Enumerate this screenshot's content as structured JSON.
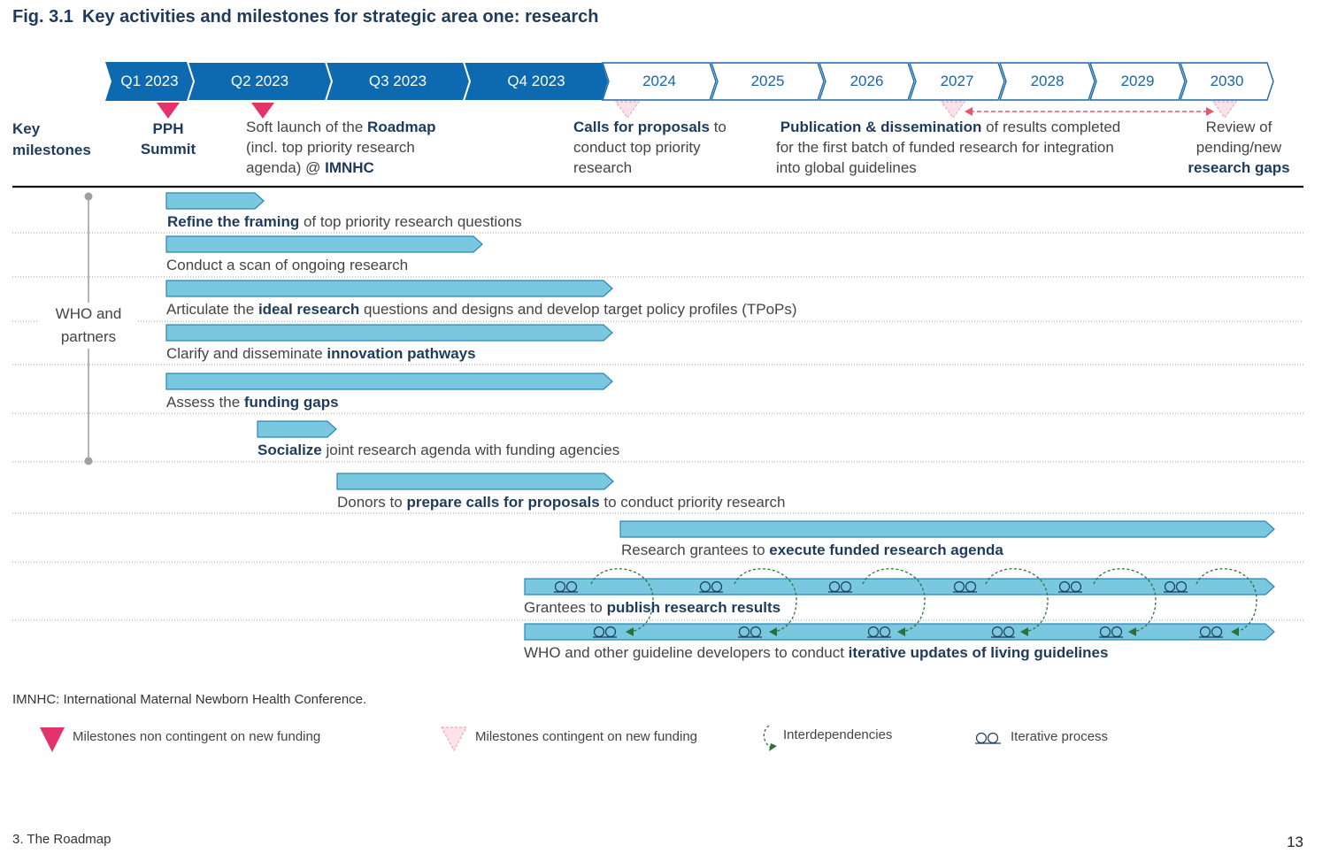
{
  "title": {
    "fig": "Fig. 3.1",
    "text": "Key activities and milestones for strategic area one: research"
  },
  "timeline": {
    "periods": [
      "Q1 2023",
      "Q2 2023",
      "Q3 2023",
      "Q4 2023",
      "2024",
      "2025",
      "2026",
      "2027",
      "2028",
      "2029",
      "2030"
    ],
    "dark_color": "#0d6ab0",
    "light_border_color": "#1b66a8"
  },
  "milestones": {
    "heading": [
      "Key",
      "milestones"
    ],
    "pph": [
      "PPH",
      "Summit"
    ],
    "soft_launch": {
      "pre": "Soft launch of the ",
      "bold": "Roadmap",
      "line2": "(incl. top priority research",
      "line3_pre": "agenda) @ ",
      "line3_bold": "IMNHC"
    },
    "calls": {
      "bold": "Calls for proposals",
      "post": " to",
      "line2": "conduct top priority",
      "line3": "research"
    },
    "publication": {
      "bold": "Publication & dissemination",
      "post": " of results completed",
      "line2": "for the first batch of funded research for integration",
      "line3": "into global guidelines"
    },
    "review": {
      "line1": "Review of",
      "line2": "pending/new",
      "line3_bold": "research gaps"
    }
  },
  "who_label": [
    "WHO and",
    "partners"
  ],
  "activities": {
    "a1": {
      "bold": "Refine the framing",
      "post": " of top priority research questions"
    },
    "a2": {
      "pre": "Conduct a scan of ongoing research"
    },
    "a3": {
      "pre": "Articulate the ",
      "bold": "ideal research",
      "post": " questions and designs and develop target policy profiles (TPoPs)"
    },
    "a4": {
      "pre": "Clarify and disseminate ",
      "bold": "innovation pathways"
    },
    "a5": {
      "pre": "Assess the ",
      "bold": "funding gaps"
    },
    "a6": {
      "bold": "Socialize",
      "post": " joint research agenda with funding agencies"
    },
    "a7": {
      "pre": "Donors to ",
      "bold": "prepare calls for proposals",
      "post": " to conduct priority research"
    },
    "a8": {
      "pre": "Research grantees to ",
      "bold": "execute funded research agenda"
    },
    "a9": {
      "pre": "Grantees to ",
      "bold": "publish research results"
    },
    "a10": {
      "pre": "WHO and other guideline developers to conduct ",
      "bold": "iterative updates of living guidelines"
    }
  },
  "colors": {
    "bar_fill": "#79c8df",
    "bar_stroke": "#2a86b6",
    "milestone_solid": "#e4326a",
    "milestone_contingent": "#f2a5b5",
    "interdependency": "#2d6e3e",
    "heading_navy": "#1f3b5c"
  },
  "footnote": "IMNHC: International Maternal Newborn Health Conference.",
  "legend": {
    "non_contingent": "Milestones non contingent on new funding",
    "contingent": "Milestones contingent on new funding",
    "interdependencies": "Interdependencies",
    "iterative": "Iterative process"
  },
  "footer": {
    "section": "3. The Roadmap",
    "page": "13"
  }
}
